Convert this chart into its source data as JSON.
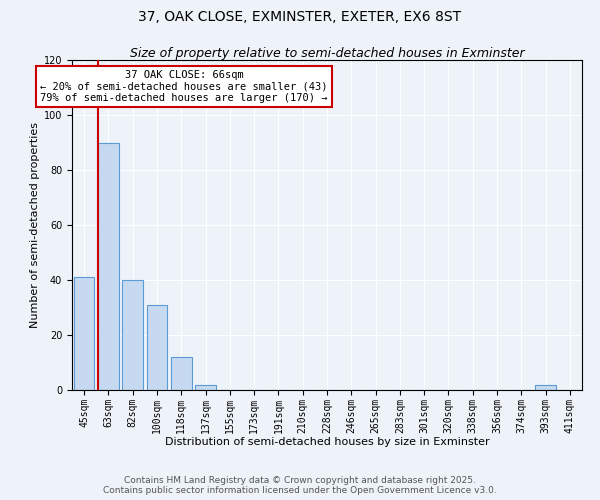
{
  "title": "37, OAK CLOSE, EXMINSTER, EXETER, EX6 8ST",
  "subtitle": "Size of property relative to semi-detached houses in Exminster",
  "xlabel": "Distribution of semi-detached houses by size in Exminster",
  "ylabel": "Number of semi-detached properties",
  "bin_labels": [
    "45sqm",
    "63sqm",
    "82sqm",
    "100sqm",
    "118sqm",
    "137sqm",
    "155sqm",
    "173sqm",
    "191sqm",
    "210sqm",
    "228sqm",
    "246sqm",
    "265sqm",
    "283sqm",
    "301sqm",
    "320sqm",
    "338sqm",
    "356sqm",
    "374sqm",
    "393sqm",
    "411sqm"
  ],
  "bar_values": [
    41,
    90,
    40,
    31,
    12,
    2,
    0,
    0,
    0,
    0,
    0,
    0,
    0,
    0,
    0,
    0,
    0,
    0,
    0,
    2,
    0
  ],
  "bar_color": "#c6d9f0",
  "bar_edge_color": "#5b9bd5",
  "property_line_color": "#cc0000",
  "annotation_title": "37 OAK CLOSE: 66sqm",
  "annotation_line1": "← 20% of semi-detached houses are smaller (43)",
  "annotation_line2": "79% of semi-detached houses are larger (170) →",
  "annotation_box_color": "#ffffff",
  "annotation_border_color": "#cc0000",
  "ylim": [
    0,
    120
  ],
  "yticks": [
    0,
    20,
    40,
    60,
    80,
    100,
    120
  ],
  "footer_line1": "Contains HM Land Registry data © Crown copyright and database right 2025.",
  "footer_line2": "Contains public sector information licensed under the Open Government Licence v3.0.",
  "background_color": "#eef2f9",
  "plot_background_color": "#eef2f9",
  "grid_color": "#ffffff",
  "title_fontsize": 10,
  "subtitle_fontsize": 9,
  "axis_label_fontsize": 8,
  "tick_fontsize": 7,
  "annotation_fontsize": 7.5,
  "footer_fontsize": 6.5
}
